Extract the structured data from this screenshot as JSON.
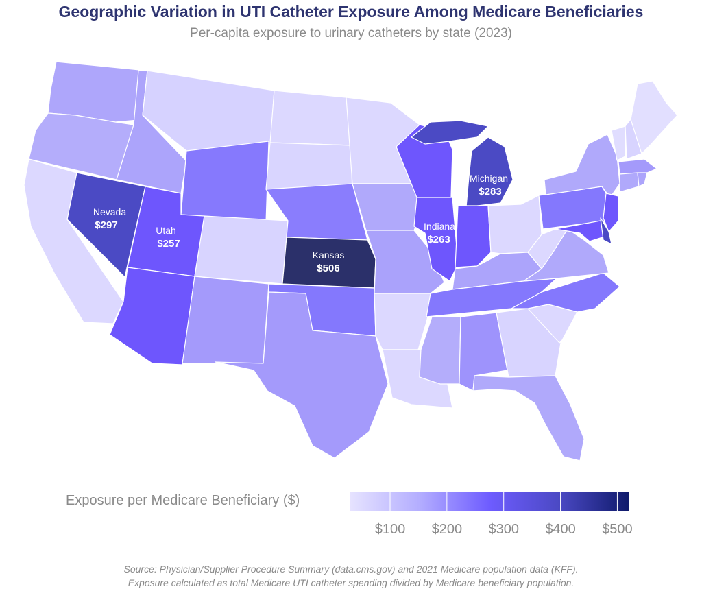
{
  "title": "Geographic Variation in UTI Catheter Exposure Among Medicare Beneficiaries",
  "subtitle": "Per-capita exposure to urinary catheters by state (2023)",
  "legend": {
    "title": "Exposure per Medicare Beneficiary ($)",
    "min": 30,
    "max": 520,
    "ticks": [
      {
        "value": 100,
        "label": "$100"
      },
      {
        "value": 200,
        "label": "$200"
      },
      {
        "value": 300,
        "label": "$300"
      },
      {
        "value": 400,
        "label": "$400"
      },
      {
        "value": 500,
        "label": "$500"
      }
    ],
    "colors": [
      "#e6e3ff",
      "#b3adff",
      "#6e5cff",
      "#4b49c4",
      "#0f1a6b"
    ]
  },
  "labeled_states": [
    {
      "state": "Nevada",
      "value": "$297"
    },
    {
      "state": "Utah",
      "value": "$257"
    },
    {
      "state": "Kansas",
      "value": "$506"
    },
    {
      "state": "Indiana",
      "value": "$263"
    },
    {
      "state": "Michigan",
      "value": "$283"
    }
  ],
  "source": {
    "line1": "Source: Physician/Supplier Procedure Summary (data.cms.gov) and 2021 Medicare population data (KFF).",
    "line2": "Exposure calculated as total Medicare UTI catheter spending divided by Medicare beneficiary population."
  }
}
